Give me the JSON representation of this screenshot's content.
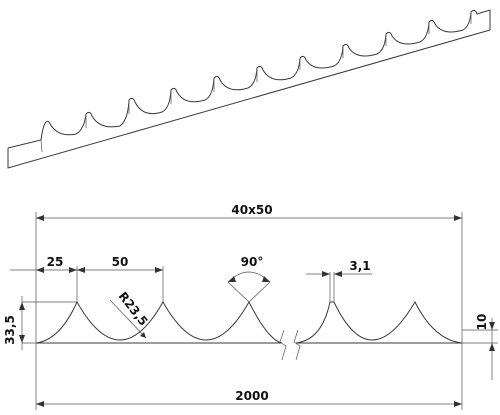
{
  "drawing": {
    "dimensions": {
      "section_size": "40x50",
      "spacing_first": "25",
      "pitch": "50",
      "angle": "90°",
      "thickness": "3,1",
      "radius": "R23,5",
      "height": "33,5",
      "base_height": "10",
      "total_length": "2000"
    }
  }
}
